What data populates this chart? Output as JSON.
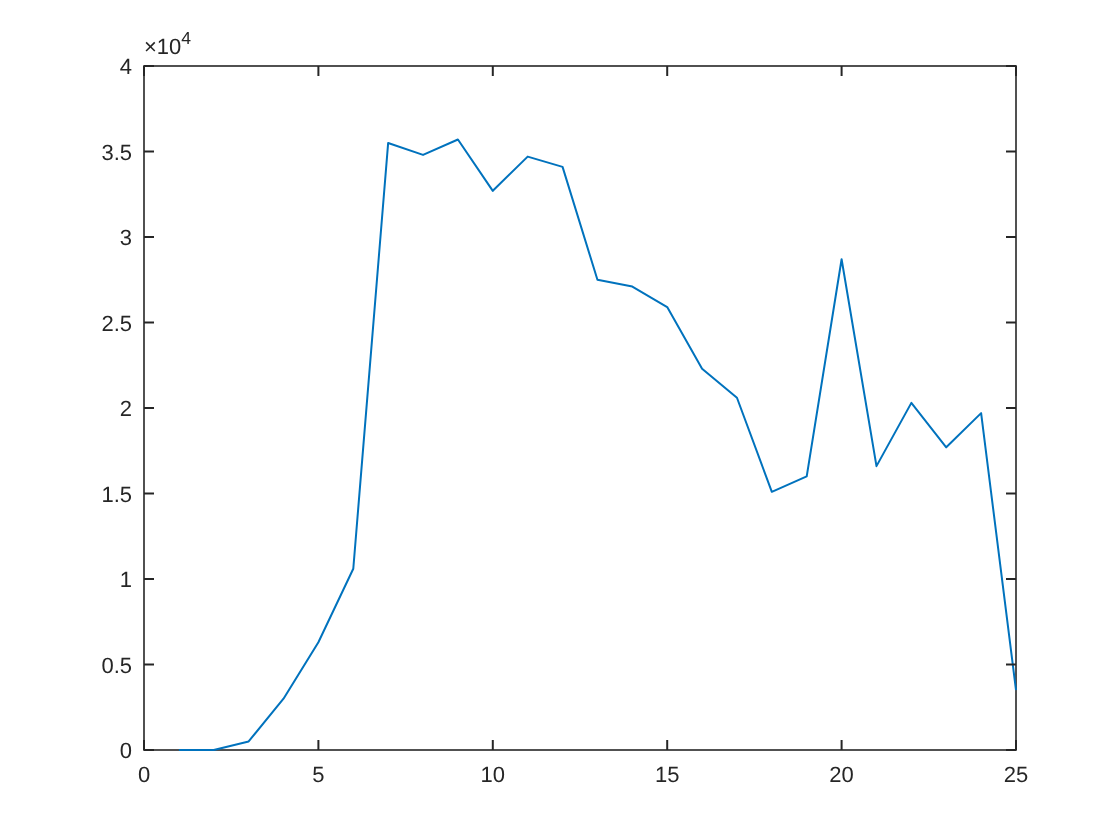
{
  "chart_data": {
    "type": "line",
    "x": [
      1,
      2,
      3,
      4,
      5,
      6,
      7,
      8,
      9,
      10,
      11,
      12,
      13,
      14,
      15,
      16,
      17,
      18,
      19,
      20,
      21,
      22,
      23,
      24,
      25
    ],
    "series": [
      {
        "color": "#0072bd",
        "values": [
          0,
          0,
          0.05,
          0.3,
          0.63,
          1.06,
          3.55,
          3.48,
          3.57,
          3.27,
          3.47,
          3.41,
          2.75,
          2.71,
          2.59,
          2.23,
          2.06,
          1.51,
          1.6,
          2.87,
          1.66,
          2.03,
          1.77,
          1.97,
          0.35
        ]
      }
    ],
    "xlim": [
      0,
      25
    ],
    "xticks": [
      0,
      5,
      10,
      15,
      20,
      25
    ],
    "ylim": [
      0,
      4
    ],
    "yticks": [
      0,
      0.5,
      1,
      1.5,
      2,
      2.5,
      3,
      3.5,
      4
    ],
    "annotations": [
      "×10$^{4}$"
    ],
    "grid": false,
    "line_style": "solid"
  }
}
